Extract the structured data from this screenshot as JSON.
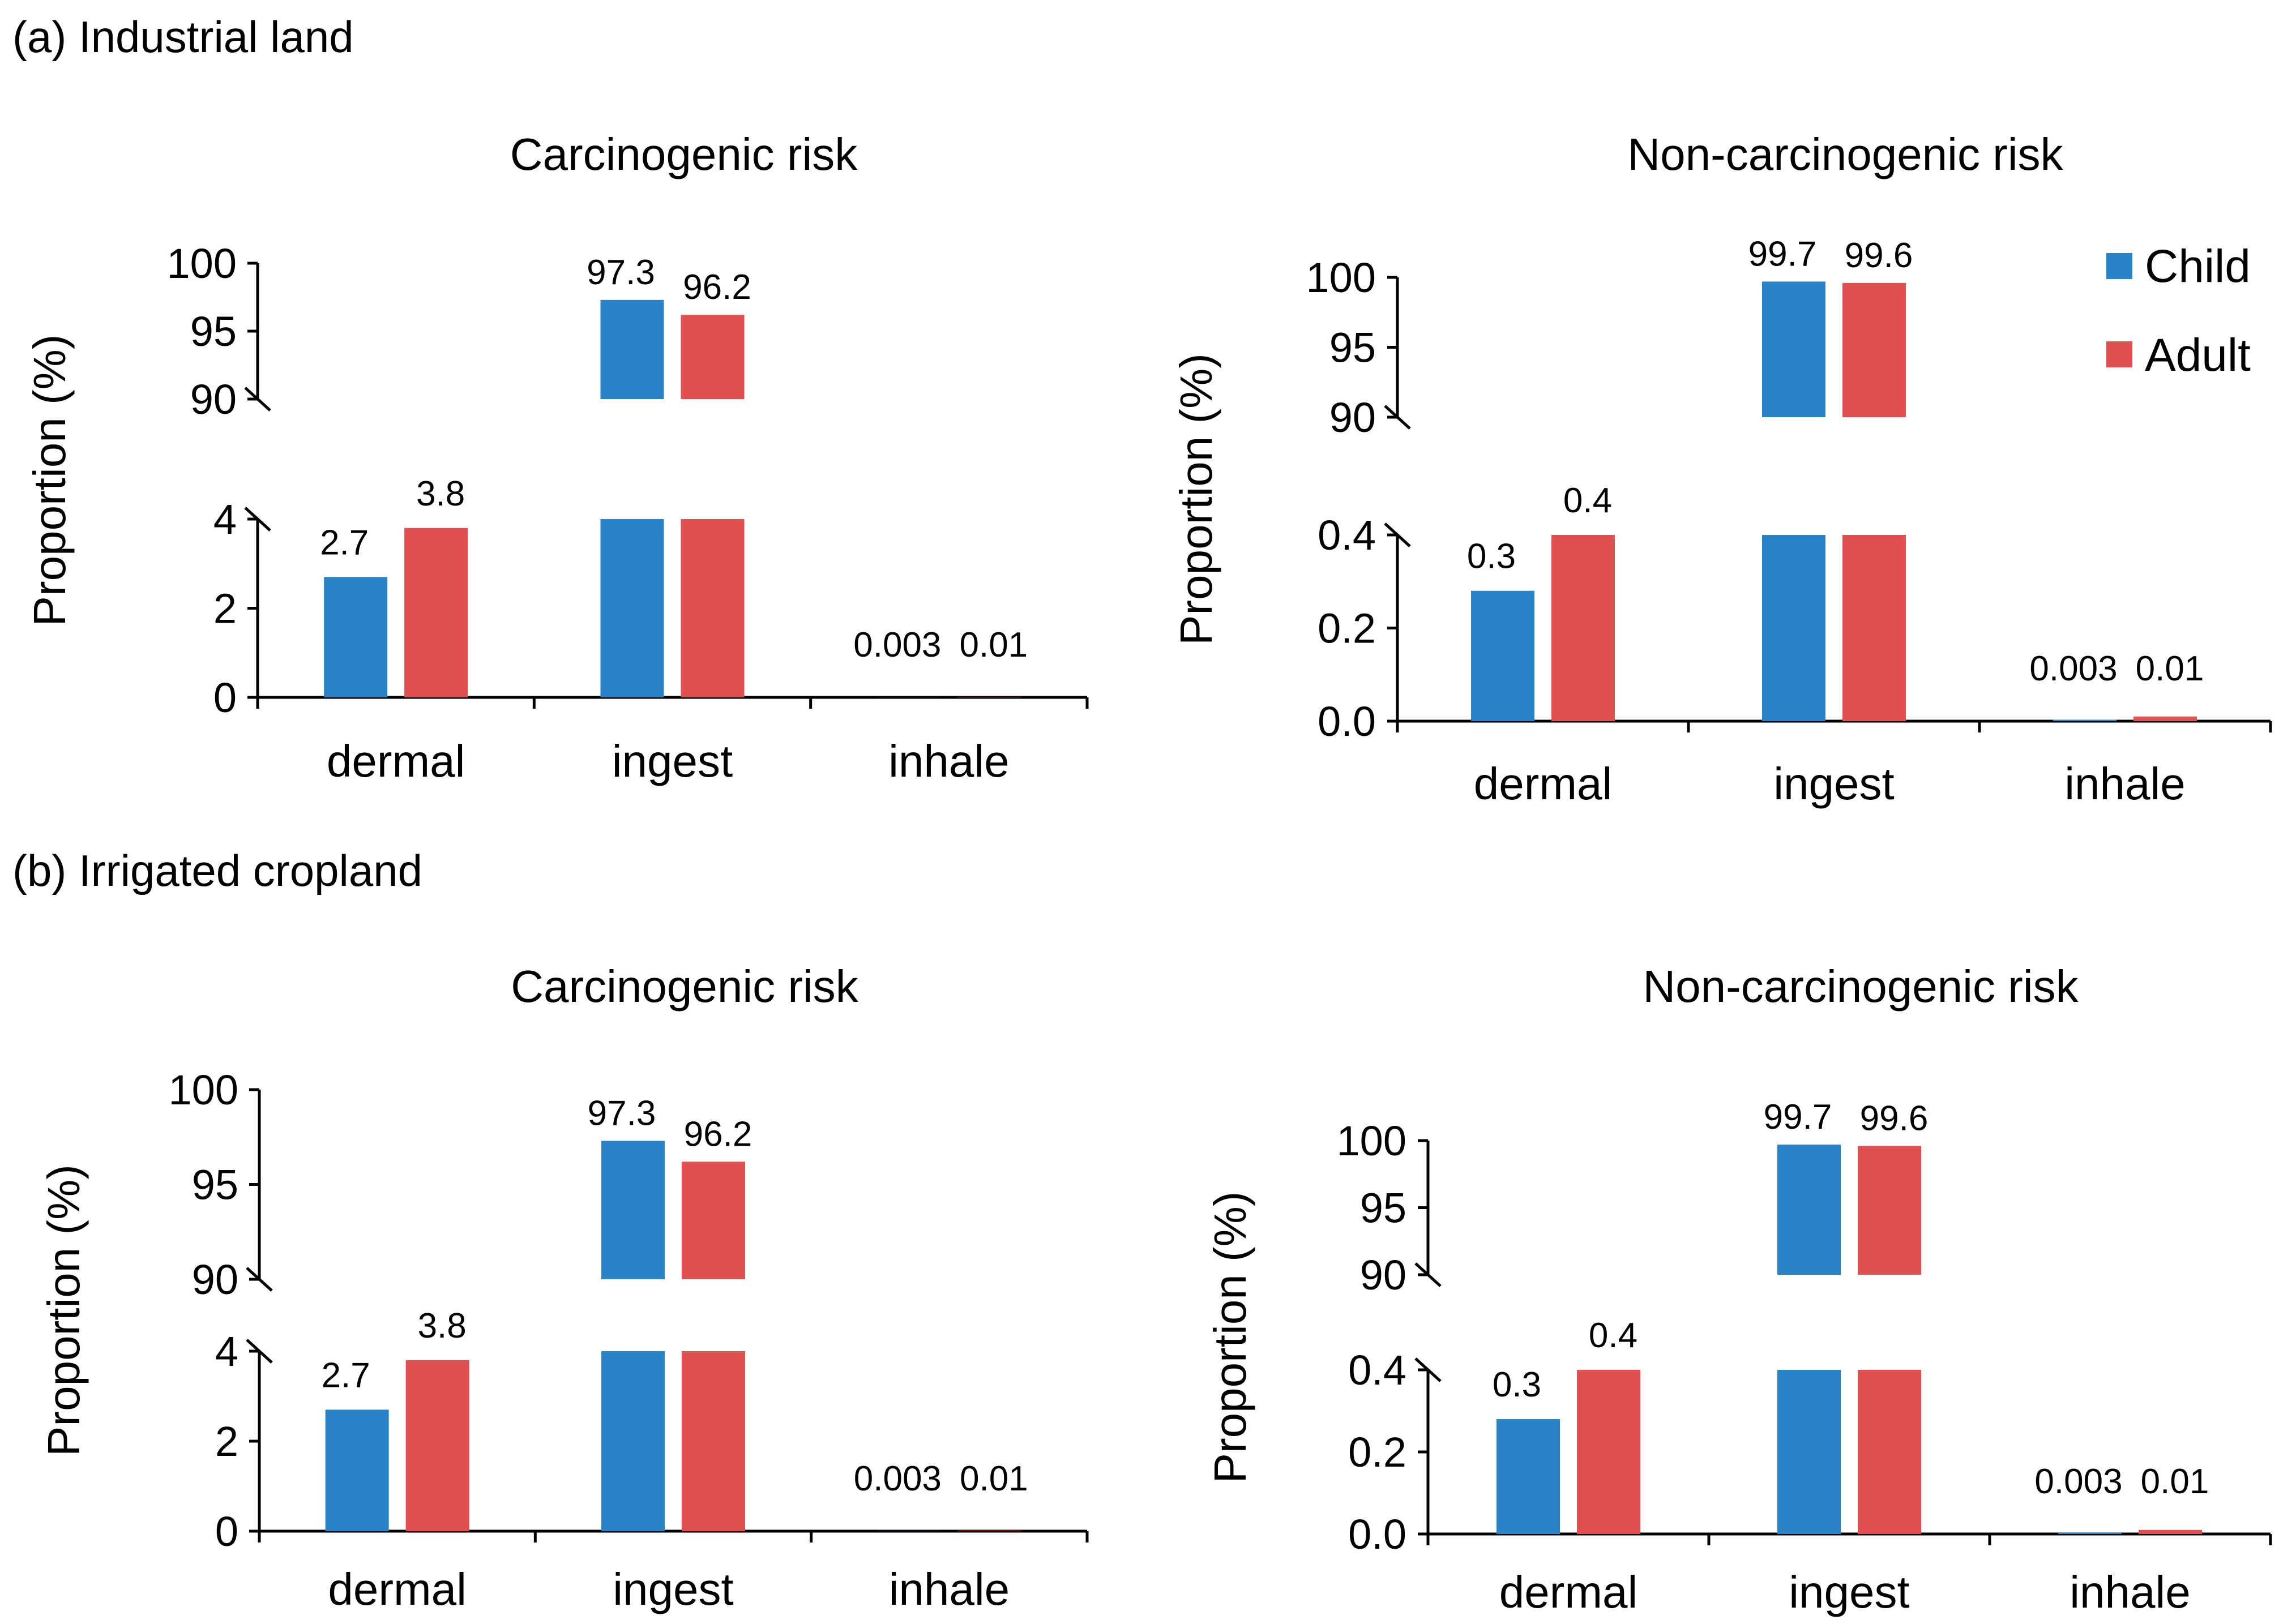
{
  "colors": {
    "child": "#2a83c6",
    "adult": "#e05050"
  },
  "legend": {
    "child_label": "Child",
    "adult_label": "Adult"
  },
  "sections": [
    {
      "label": "(a) Industrial land"
    },
    {
      "label": "(b) Irrigated cropland"
    }
  ],
  "chart_data": [
    {
      "type": "bar",
      "panel": "a-carcinogenic",
      "title": "Carcinogenic risk",
      "ylabel": "Proportion (%)",
      "categories": [
        "dermal",
        "ingest",
        "inhale"
      ],
      "series": [
        {
          "name": "Child",
          "values": [
            2.7,
            97.3,
            0.003
          ],
          "labels": [
            "2.7",
            "97.3",
            "0.003"
          ]
        },
        {
          "name": "Adult",
          "values": [
            3.8,
            96.2,
            0.01
          ],
          "labels": [
            "3.8",
            "96.2",
            "0.01"
          ]
        }
      ],
      "broken_axis": true,
      "lower_range": [
        0,
        4
      ],
      "lower_ticks": [
        0,
        2,
        4
      ],
      "lower_tick_labels": [
        "0",
        "2",
        "4"
      ],
      "upper_range": [
        90,
        100
      ],
      "upper_ticks": [
        90,
        95,
        100
      ],
      "upper_tick_labels": [
        "90",
        "95",
        "100"
      ]
    },
    {
      "type": "bar",
      "panel": "a-noncarcinogenic",
      "title": "Non-carcinogenic risk",
      "ylabel": "Proportion (%)",
      "categories": [
        "dermal",
        "ingest",
        "inhale"
      ],
      "series": [
        {
          "name": "Child",
          "values": [
            0.28,
            99.7,
            0.003
          ],
          "labels": [
            "0.3",
            "99.7",
            "0.003"
          ]
        },
        {
          "name": "Adult",
          "values": [
            0.4,
            99.6,
            0.01
          ],
          "labels": [
            "0.4",
            "99.6",
            "0.01"
          ]
        }
      ],
      "broken_axis": true,
      "lower_range": [
        0,
        0.4
      ],
      "lower_ticks": [
        0,
        0.2,
        0.4
      ],
      "lower_tick_labels": [
        "0.0",
        "0.2",
        "0.4"
      ],
      "upper_range": [
        90,
        100
      ],
      "upper_ticks": [
        90,
        95,
        100
      ],
      "upper_tick_labels": [
        "90",
        "95",
        "100"
      ]
    },
    {
      "type": "bar",
      "panel": "b-carcinogenic",
      "title": "Carcinogenic risk",
      "ylabel": "Proportion (%)",
      "categories": [
        "dermal",
        "ingest",
        "inhale"
      ],
      "series": [
        {
          "name": "Child",
          "values": [
            2.7,
            97.3,
            0.003
          ],
          "labels": [
            "2.7",
            "97.3",
            "0.003"
          ]
        },
        {
          "name": "Adult",
          "values": [
            3.8,
            96.2,
            0.01
          ],
          "labels": [
            "3.8",
            "96.2",
            "0.01"
          ]
        }
      ],
      "broken_axis": true,
      "lower_range": [
        0,
        4
      ],
      "lower_ticks": [
        0,
        2,
        4
      ],
      "lower_tick_labels": [
        "0",
        "2",
        "4"
      ],
      "upper_range": [
        90,
        100
      ],
      "upper_ticks": [
        90,
        95,
        100
      ],
      "upper_tick_labels": [
        "90",
        "95",
        "100"
      ]
    },
    {
      "type": "bar",
      "panel": "b-noncarcinogenic",
      "title": "Non-carcinogenic risk",
      "ylabel": "Proportion (%)",
      "categories": [
        "dermal",
        "ingest",
        "inhale"
      ],
      "series": [
        {
          "name": "Child",
          "values": [
            0.28,
            99.7,
            0.003
          ],
          "labels": [
            "0.3",
            "99.7",
            "0.003"
          ]
        },
        {
          "name": "Adult",
          "values": [
            0.4,
            99.6,
            0.01
          ],
          "labels": [
            "0.4",
            "99.6",
            "0.01"
          ]
        }
      ],
      "broken_axis": true,
      "lower_range": [
        0,
        0.4
      ],
      "lower_ticks": [
        0,
        0.2,
        0.4
      ],
      "lower_tick_labels": [
        "0.0",
        "0.2",
        "0.4"
      ],
      "upper_range": [
        90,
        100
      ],
      "upper_ticks": [
        90,
        95,
        100
      ],
      "upper_tick_labels": [
        "90",
        "95",
        "100"
      ]
    }
  ]
}
